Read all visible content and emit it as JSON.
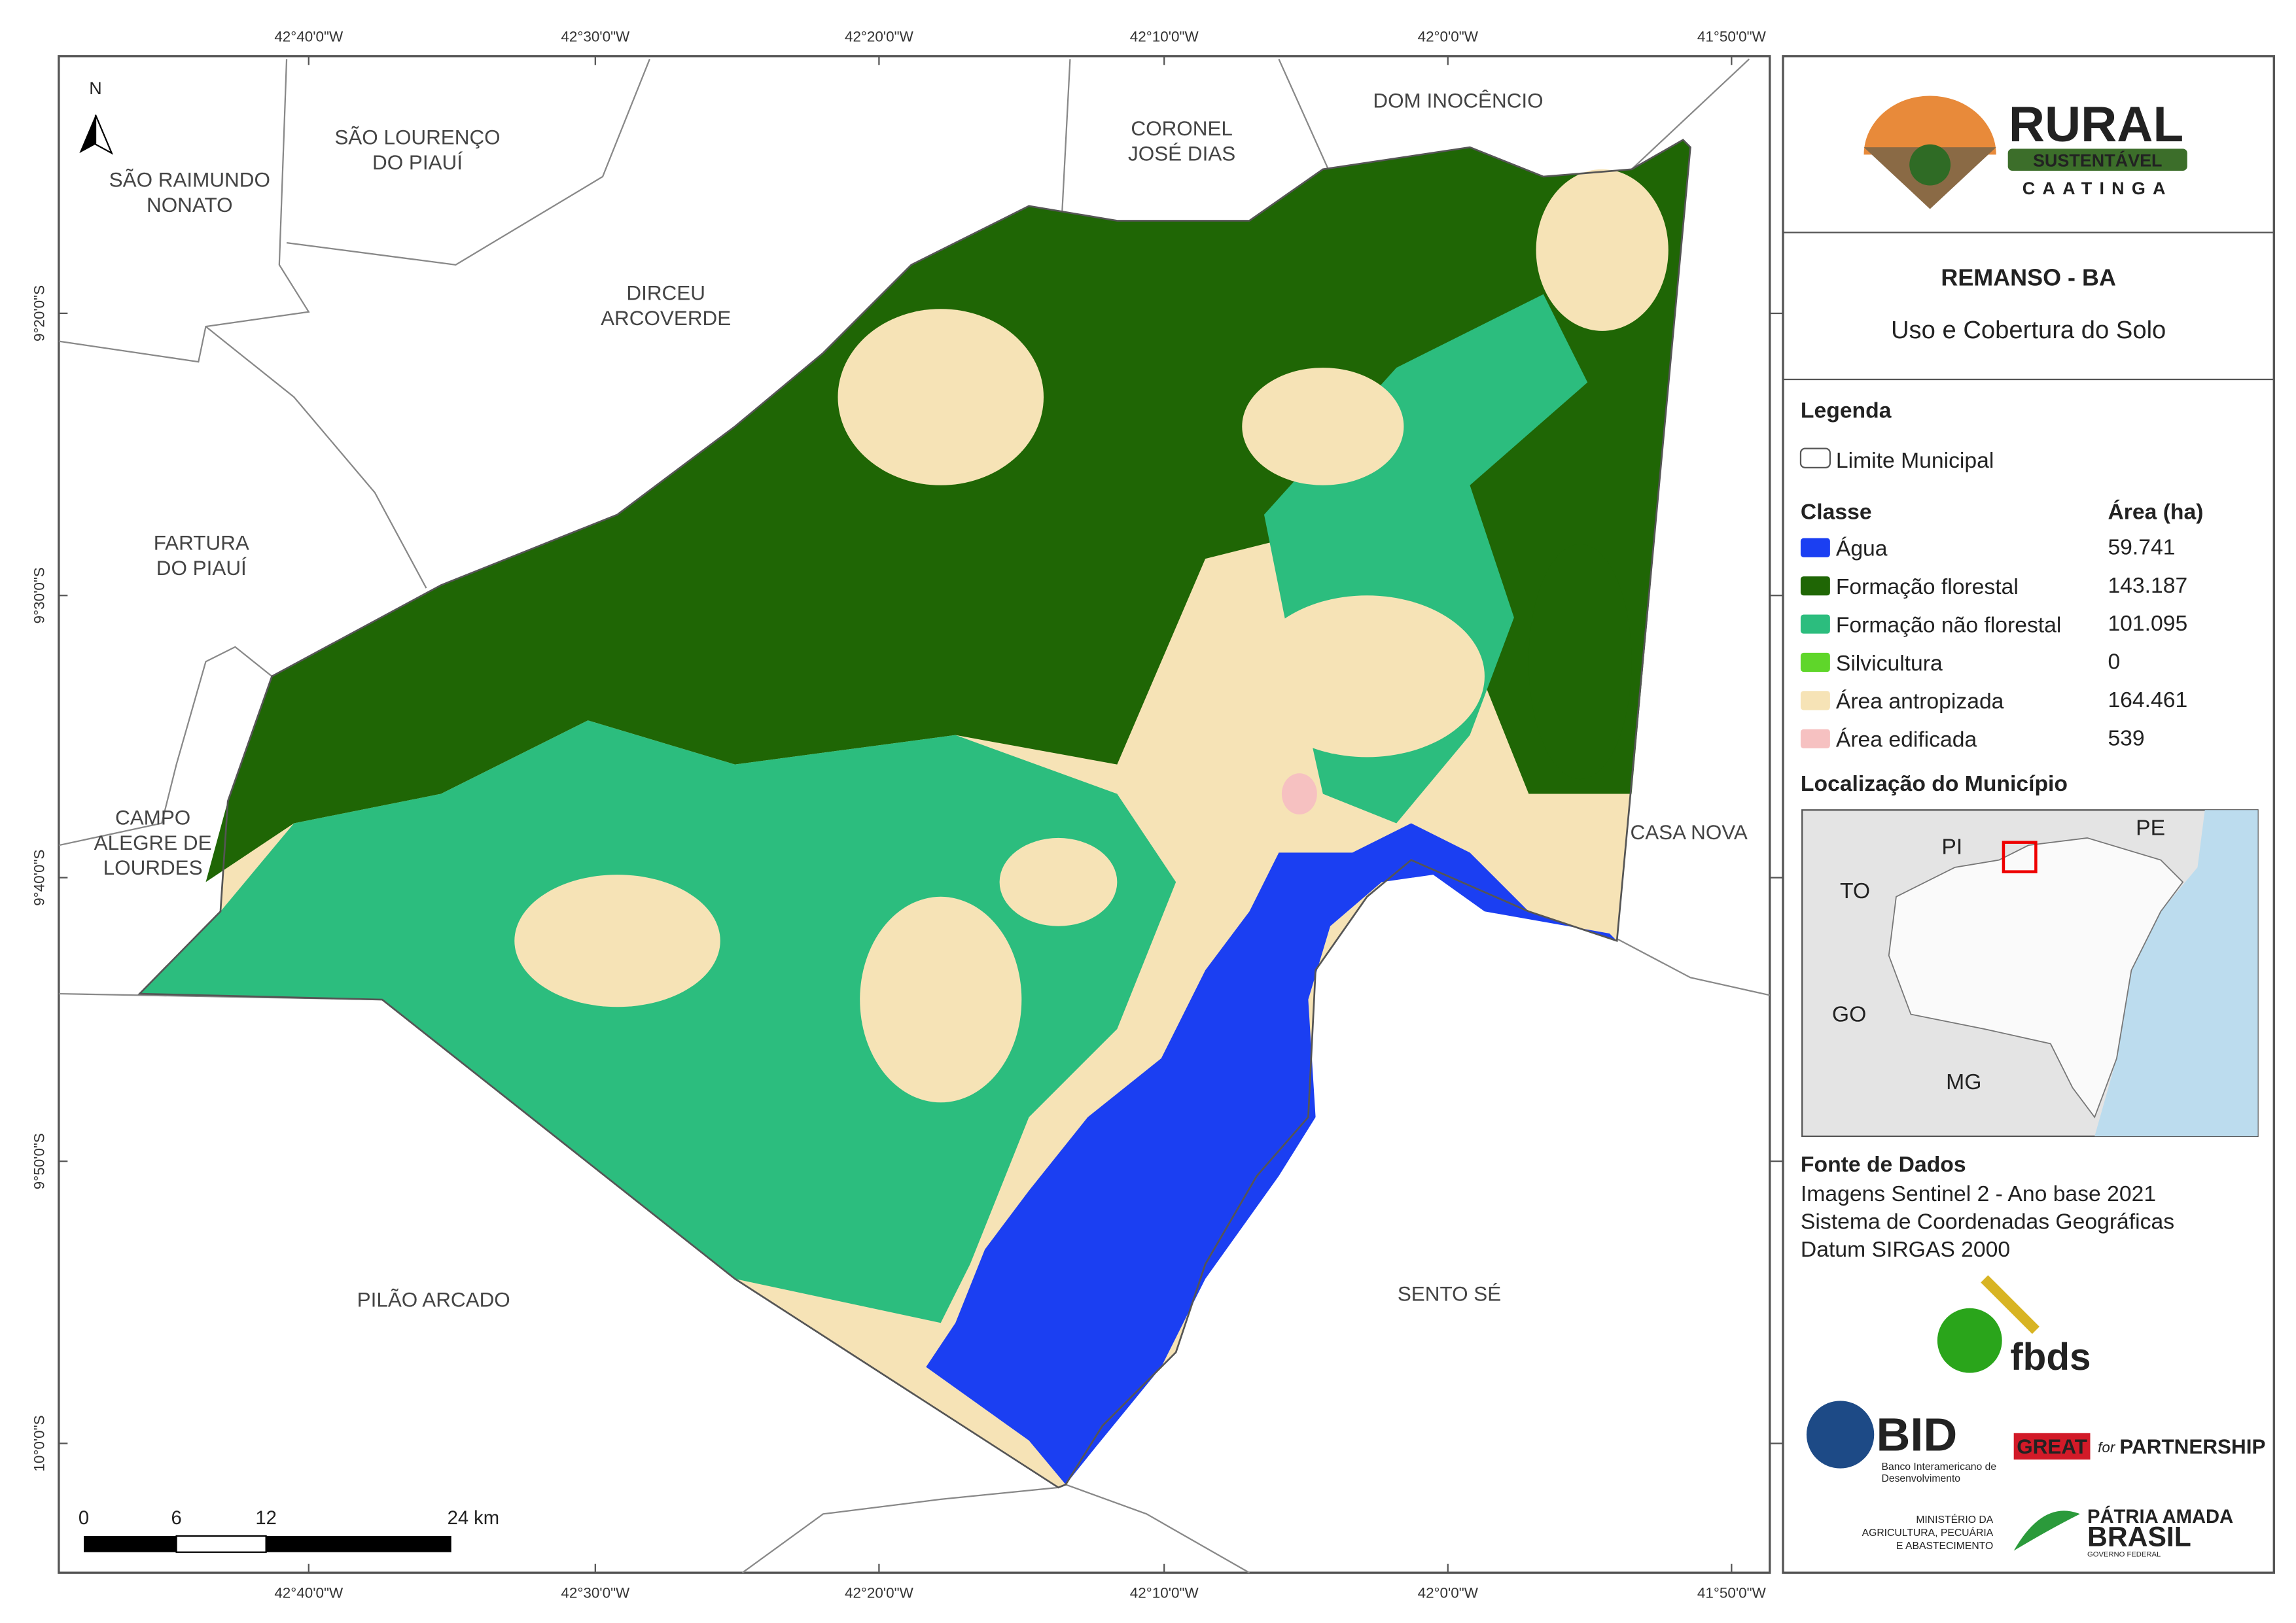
{
  "header": {
    "title": "REMANSO - BA",
    "subtitle": "Uso e Cobertura do Solo"
  },
  "logo": {
    "name": "RURAL",
    "line1": "SUSTENTÁVEL",
    "line2": "CAATINGA"
  },
  "legend": {
    "title": "Legenda",
    "boundary": "Limite Municipal",
    "class_header": "Classe",
    "area_header": "Área (ha)",
    "items": [
      {
        "label": "Água",
        "area": "59.741",
        "color": "#1b3ff2"
      },
      {
        "label": "Formação florestal",
        "area": "143.187",
        "color": "#1f6605"
      },
      {
        "label": "Formação não florestal",
        "area": "101.095",
        "color": "#2cbd7e"
      },
      {
        "label": "Silvicultura",
        "area": "0",
        "color": "#5fd62a"
      },
      {
        "label": "Área antropizada",
        "area": "164.461",
        "color": "#f6e3b6"
      },
      {
        "label": "Área edificada",
        "area": "539",
        "color": "#f6c1c1"
      }
    ]
  },
  "location": {
    "title": "Localização do Município",
    "states": [
      "PI",
      "PE",
      "TO",
      "GO",
      "MG"
    ]
  },
  "source": {
    "title": "Fonte de Dados",
    "lines": [
      "Imagens Sentinel 2 - Ano base 2021",
      "Sistema de Coordenadas Geográficas",
      "Datum SIRGAS 2000"
    ]
  },
  "map": {
    "north": "N",
    "neighbors": [
      {
        "lines": [
          "SÃO RAIMUNDO",
          "NONATO"
        ]
      },
      {
        "lines": [
          "SÃO LOURENÇO",
          "DO PIAUÍ"
        ]
      },
      {
        "lines": [
          "CORONEL",
          "JOSÉ DIAS"
        ]
      },
      {
        "lines": [
          "DOM INOCÊNCIO"
        ]
      },
      {
        "lines": [
          "DIRCEU",
          "ARCOVERDE"
        ]
      },
      {
        "lines": [
          "FARTURA",
          "DO PIAUÍ"
        ]
      },
      {
        "lines": [
          "CAMPO",
          "ALEGRE DE",
          "LOURDES"
        ]
      },
      {
        "lines": [
          "CASA NOVA"
        ]
      },
      {
        "lines": [
          "PILÃO ARCADO"
        ]
      },
      {
        "lines": [
          "SENTO SÉ"
        ]
      }
    ],
    "x_ticks": [
      "42°40'0\"W",
      "42°30'0\"W",
      "42°20'0\"W",
      "42°10'0\"W",
      "42°0'0\"W",
      "41°50'0\"W"
    ],
    "y_ticks": [
      "9°20'0\"S",
      "9°30'0\"S",
      "9°40'0\"S",
      "9°50'0\"S",
      "10°0'0\"S"
    ],
    "scale_labels": [
      "0",
      "6",
      "12",
      "24 km"
    ]
  },
  "partners": {
    "fbds": "fbds",
    "bid": "BID",
    "bid_lines": [
      "Banco Interamericano de",
      "Desenvolvimento"
    ],
    "great": "GREAT",
    "great_for": "for",
    "great_partner": "PARTNERSHIP",
    "ministry": [
      "MINISTÉRIO DA",
      "AGRICULTURA, PECUÁRIA",
      "E ABASTECIMENTO"
    ],
    "patria": "PÁTRIA AMADA",
    "brasil": "BRASIL",
    "governo": "GOVERNO FEDERAL"
  }
}
